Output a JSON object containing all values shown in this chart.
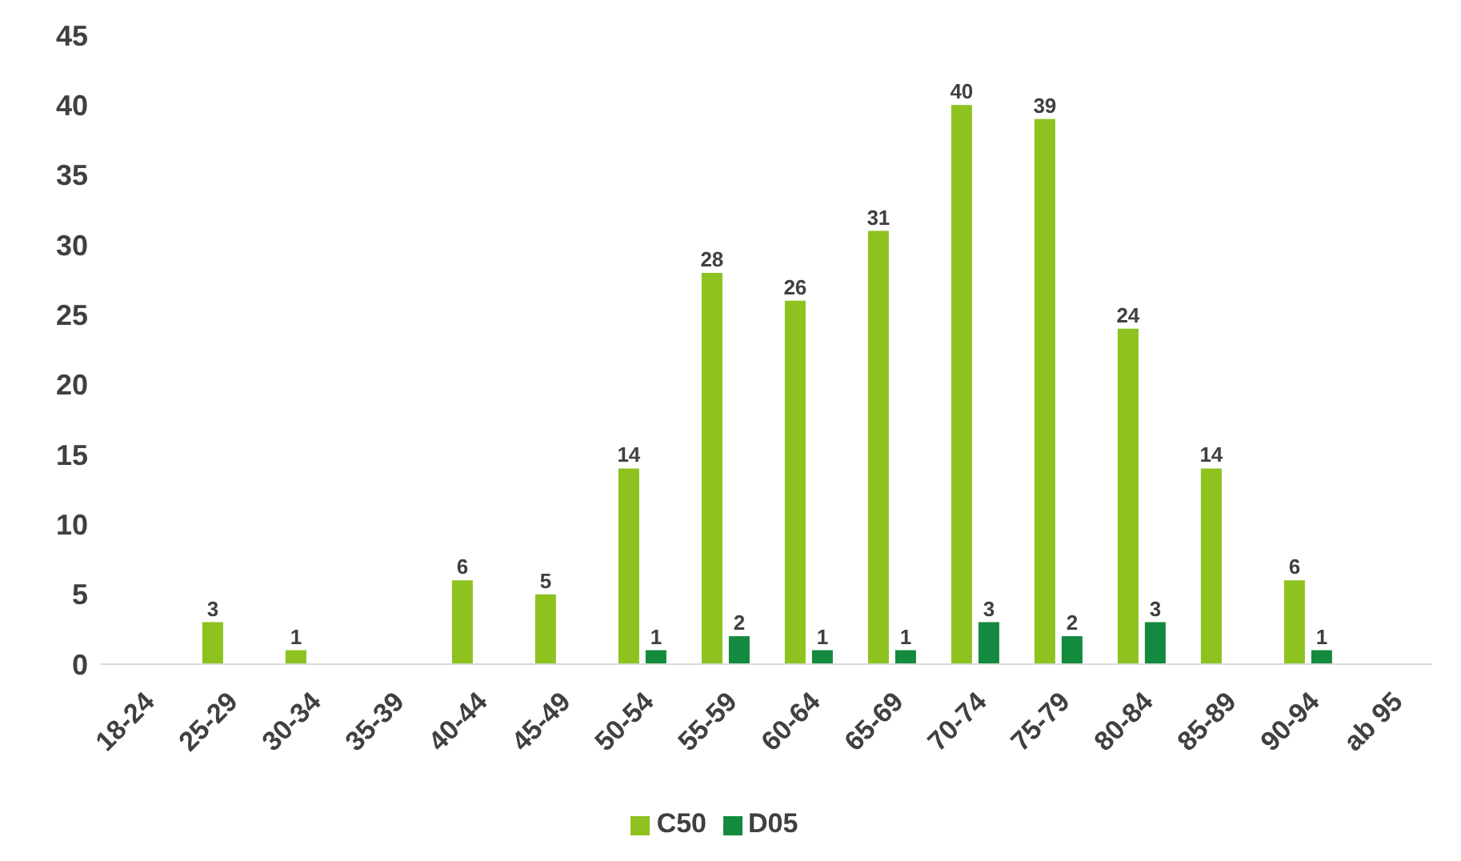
{
  "chart_data": {
    "type": "bar",
    "categories": [
      "18-24",
      "25-29",
      "30-34",
      "35-39",
      "40-44",
      "45-49",
      "50-54",
      "55-59",
      "60-64",
      "65-69",
      "70-74",
      "75-79",
      "80-84",
      "85-89",
      "90-94",
      "ab 95"
    ],
    "series": [
      {
        "name": "C50",
        "color": "#8dc21f",
        "values": [
          0,
          3,
          1,
          0,
          6,
          5,
          14,
          28,
          26,
          31,
          40,
          39,
          24,
          14,
          6,
          0
        ],
        "value_labels": [
          null,
          "3",
          "1",
          null,
          "6",
          "5",
          "14",
          "28",
          "26",
          "31",
          "40",
          "39",
          "24",
          "14",
          "6",
          null
        ]
      },
      {
        "name": "D05",
        "color": "#138a3e",
        "values": [
          0,
          0,
          0,
          0,
          0,
          0,
          1,
          2,
          1,
          1,
          3,
          2,
          3,
          0,
          1,
          0
        ],
        "value_labels": [
          null,
          null,
          null,
          null,
          null,
          null,
          "1",
          "2",
          "1",
          "1",
          "3",
          "2",
          "3",
          null,
          "1",
          null
        ]
      }
    ],
    "ylim": [
      0,
      45
    ],
    "yticks": [
      0,
      5,
      10,
      15,
      20,
      25,
      30,
      35,
      40,
      45
    ],
    "grid": false,
    "legend": "bottom"
  }
}
